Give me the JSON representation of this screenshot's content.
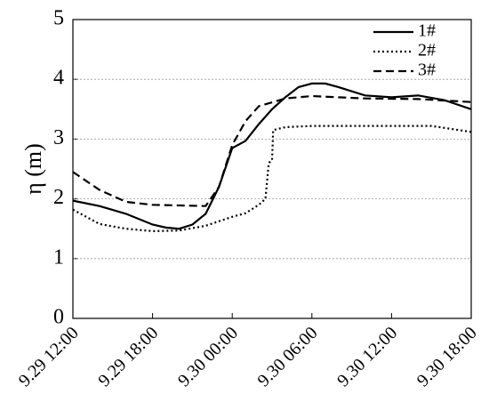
{
  "chart_data": {
    "type": "line",
    "ylabel": "η (m)",
    "xlim": [
      "9.29 12:00",
      "9.30 18:00"
    ],
    "xticks": [
      "9.29 12:00",
      "9.29 18:00",
      "9.30 00:00",
      "9.30 06:00",
      "9.30 12:00",
      "9.30 18:00"
    ],
    "ylim": [
      0,
      5
    ],
    "yticks": [
      0,
      1,
      2,
      3,
      4,
      5
    ],
    "grid": true,
    "legend": "upper right",
    "series": [
      {
        "name": "1#",
        "color": "#000000",
        "dash": "solid",
        "x": [
          "9.29 12:00",
          "9.29 14:00",
          "9.29 16:00",
          "9.29 18:00",
          "9.29 19:00",
          "9.29 20:00",
          "9.29 21:00",
          "9.29 22:00",
          "9.29 23:00",
          "9.30 00:00",
          "9.30 01:00",
          "9.30 02:00",
          "9.30 03:00",
          "9.30 04:00",
          "9.30 05:00",
          "9.30 06:00",
          "9.30 07:00",
          "9.30 08:00",
          "9.30 10:00",
          "9.30 12:00",
          "9.30 14:00",
          "9.30 16:00",
          "9.30 18:00"
        ],
        "values": [
          1.97,
          1.88,
          1.75,
          1.57,
          1.52,
          1.5,
          1.57,
          1.75,
          2.2,
          2.85,
          2.97,
          3.25,
          3.5,
          3.7,
          3.87,
          3.93,
          3.93,
          3.87,
          3.73,
          3.7,
          3.73,
          3.65,
          3.5
        ]
      },
      {
        "name": "2#",
        "color": "#000000",
        "dash": "dotted",
        "x": [
          "9.29 12:00",
          "9.29 14:00",
          "9.29 16:00",
          "9.29 18:00",
          "9.29 20:00",
          "9.29 22:00",
          "9.30 00:00",
          "9.30 01:00",
          "9.30 02:00",
          "9.30 02:30",
          "9.30 02:45",
          "9.30 03:00",
          "9.30 03:05",
          "9.30 04:00",
          "9.30 06:00",
          "9.30 12:00",
          "9.30 15:00",
          "9.30 18:00"
        ],
        "values": [
          1.82,
          1.58,
          1.5,
          1.46,
          1.47,
          1.55,
          1.7,
          1.76,
          1.9,
          2.0,
          2.6,
          2.65,
          3.15,
          3.2,
          3.22,
          3.22,
          3.22,
          3.12
        ]
      },
      {
        "name": "3#",
        "color": "#000000",
        "dash": "dashed",
        "x": [
          "9.29 12:00",
          "9.29 14:00",
          "9.29 16:00",
          "9.29 18:00",
          "9.29 22:00",
          "9.29 23:00",
          "9.30 00:00",
          "9.30 01:00",
          "9.30 02:00",
          "9.30 04:00",
          "9.30 06:00",
          "9.30 10:00",
          "9.30 14:00",
          "9.30 18:00"
        ],
        "values": [
          2.45,
          2.15,
          1.95,
          1.9,
          1.88,
          2.2,
          2.9,
          3.3,
          3.55,
          3.68,
          3.72,
          3.68,
          3.67,
          3.62
        ]
      }
    ]
  }
}
